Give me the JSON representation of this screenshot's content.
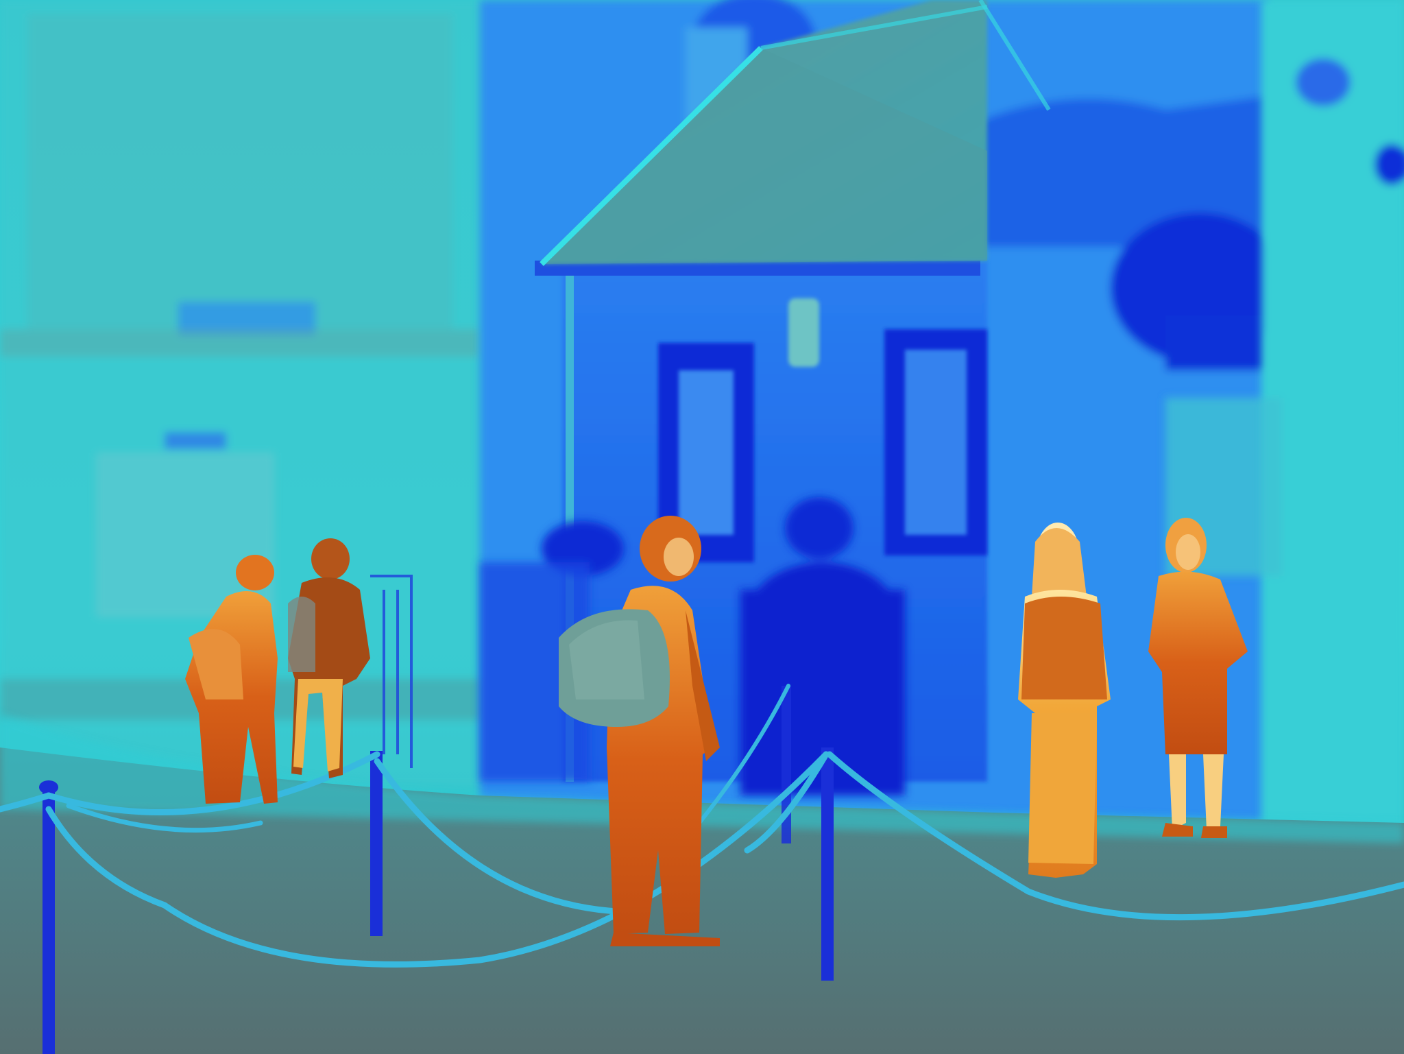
{
  "image": {
    "kind": "thermal-camera-photo",
    "palette": {
      "coldest": "#0a1fd6",
      "cold": "#2a6cf0",
      "cool": "#2fd8e0",
      "neutral": "#5f8d8f",
      "warm": "#d9641a",
      "hot": "#f2b43a",
      "hottest": "#ffe9a6"
    },
    "subjects": [
      "person-far-left-1",
      "person-far-left-2",
      "person-center-with-backpack",
      "person-right-1",
      "person-right-2"
    ]
  }
}
